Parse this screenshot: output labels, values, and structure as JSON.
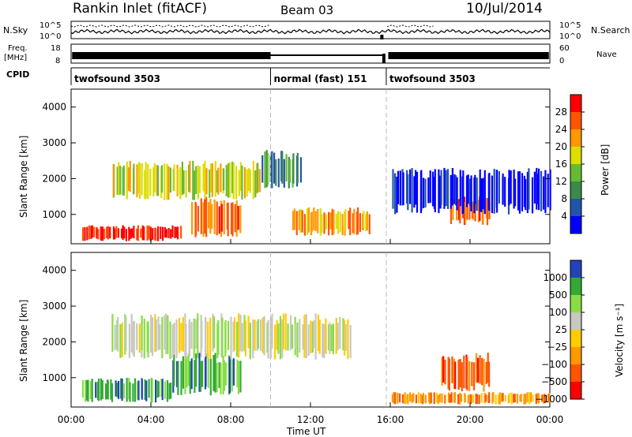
{
  "header": {
    "site": "Rankin Inlet (fitACF)",
    "beam": "Beam 03",
    "date": "10/Jul/2014"
  },
  "strip_labels": {
    "nsky": "N.Sky",
    "nsearch": "N.Search",
    "freq_top": "Freq.",
    "freq_unit": "[MHz]",
    "nave": "Nave",
    "cpid": "CPID",
    "nsky_ticks": [
      "10^5",
      "10^0"
    ],
    "nsearch_ticks": [
      "10^5",
      "10^0"
    ],
    "freq_ticks": [
      "18",
      "8"
    ],
    "nave_ticks": [
      "60",
      "0"
    ]
  },
  "cpid_segments": [
    {
      "label": "twofsound 3503",
      "start": 0.0,
      "end": 10.0
    },
    {
      "label": "normal (fast) 151",
      "start": 10.0,
      "end": 15.8
    },
    {
      "label": "twofsound 3503",
      "start": 15.8,
      "end": 24.0
    }
  ],
  "colors": {
    "power": [
      "#0000ff",
      "#2255aa",
      "#3a8a4a",
      "#66bb33",
      "#dddd00",
      "#ff9900",
      "#ff5500",
      "#ff0000"
    ],
    "velocity": [
      "#2244bb",
      "#33aa33",
      "#88dd44",
      "#c8c8c0",
      "#ffcc00",
      "#ff9900",
      "#ff5500",
      "#ff0000"
    ],
    "bg": "#ffffff",
    "line": "#000000"
  },
  "chart_data": [
    {
      "type": "heatmap",
      "name": "power",
      "xlabel": "",
      "ylabel": "Slant Range [km]",
      "xlim": [
        0,
        24
      ],
      "ylim": [
        180,
        4500
      ],
      "yticks": [
        "1000",
        "2000",
        "3000",
        "4000"
      ],
      "colorbar_label": "Power [dB]",
      "colorbar_ticks": [
        "4",
        "8",
        "12",
        "16",
        "20",
        "24",
        "28"
      ],
      "regions": [
        {
          "t0": 0.5,
          "t1": 5.5,
          "r0": 250,
          "r1": 700,
          "level": 7
        },
        {
          "t0": 6.0,
          "t1": 8.5,
          "r0": 350,
          "r1": 1500,
          "level": 6
        },
        {
          "t0": 2.0,
          "t1": 9.5,
          "r0": 1400,
          "r1": 2500,
          "level": 4
        },
        {
          "t0": 9.5,
          "t1": 11.5,
          "r0": 1700,
          "r1": 2800,
          "level": 2
        },
        {
          "t0": 11.0,
          "t1": 15.0,
          "r0": 400,
          "r1": 1200,
          "level": 5
        },
        {
          "t0": 19.0,
          "t1": 21.0,
          "r0": 700,
          "r1": 1500,
          "level": 6
        },
        {
          "t0": 16.0,
          "t1": 24.0,
          "r0": 1000,
          "r1": 2300,
          "level": 0
        }
      ]
    },
    {
      "type": "heatmap",
      "name": "velocity",
      "xlabel": "Time UT",
      "ylabel": "Slant Range [km]",
      "xlim": [
        0,
        24
      ],
      "ylim": [
        180,
        4500
      ],
      "xticks": [
        "00:00",
        "04:00",
        "08:00",
        "12:00",
        "16:00",
        "20:00",
        "00:00"
      ],
      "yticks": [
        "1000",
        "2000",
        "3000",
        "4000"
      ],
      "colorbar_label": "Velocity [m s⁻¹]",
      "colorbar_ticks": [
        "1000",
        "500",
        "100",
        "25",
        "−25",
        "−100",
        "−500",
        "−1000"
      ],
      "regions": [
        {
          "t0": 0.5,
          "t1": 5.0,
          "r0": 300,
          "r1": 1000,
          "level": 1
        },
        {
          "t0": 5.0,
          "t1": 8.5,
          "r0": 500,
          "r1": 1700,
          "level": 1
        },
        {
          "t0": 2.0,
          "t1": 14.0,
          "r0": 1500,
          "r1": 2800,
          "level": 3
        },
        {
          "t0": 18.5,
          "t1": 21.0,
          "r0": 600,
          "r1": 1700,
          "level": 6
        },
        {
          "t0": 16.0,
          "t1": 24.0,
          "r0": 250,
          "r1": 600,
          "level": 5
        }
      ]
    }
  ]
}
